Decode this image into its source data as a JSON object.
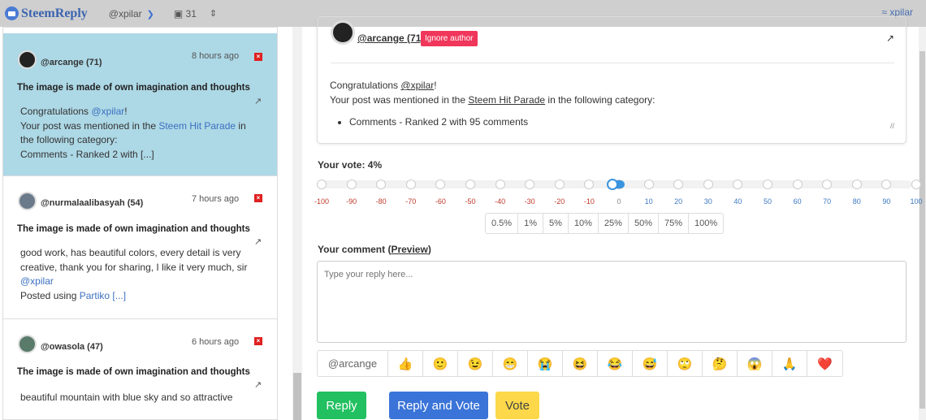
{
  "topbar": {
    "app_name": "SteemReply",
    "account": "@xpilar",
    "inbox_count": "31",
    "user": "xpilar"
  },
  "comments": [
    {
      "author": "@arcange (71)",
      "time": "8 hours ago",
      "title": "The image is made of own imagination and thoughts",
      "lines": [
        "Congratulations ",
        "@xpilar",
        "!",
        "Your post was mentioned in the ",
        "Steem Hit Parade",
        " in",
        "the following category:",
        "Comments - Ranked 2 with [...]"
      ]
    },
    {
      "author": "@nurmalaalibasyah (54)",
      "time": "7 hours ago",
      "title": "The image is made of own imagination and thoughts",
      "lines": [
        "good work, has beautiful colors, every detail is very",
        "creative, thank you for sharing, I like it very much, sir",
        "@xpilar",
        "Posted using ",
        "Partiko [...]"
      ]
    },
    {
      "author": "@owasola (47)",
      "time": "6 hours ago",
      "title": "The image is made of own imagination and thoughts",
      "lines": [
        "beautiful mountain with blue sky and so attractive"
      ]
    }
  ],
  "post": {
    "author": "@arcange (71)",
    "ignore_label": "Ignore author",
    "greeting": "Congratulations ",
    "mention": "@xpilar",
    "excl": "!",
    "line2a": "Your post was mentioned in the ",
    "line2link": "Steem Hit Parade",
    "line2b": " in the following category:",
    "bullet": "Comments - Ranked 2 with 95 comments"
  },
  "vote": {
    "label": "Your vote: 4%",
    "value": 4,
    "ticks": [
      "-100",
      "-90",
      "-80",
      "-70",
      "-60",
      "-50",
      "-40",
      "-30",
      "-20",
      "-10",
      "0",
      "10",
      "20",
      "30",
      "40",
      "50",
      "60",
      "70",
      "80",
      "90",
      "100"
    ],
    "presets": [
      "0.5%",
      "1%",
      "5%",
      "10%",
      "25%",
      "50%",
      "75%",
      "100%"
    ],
    "neg_color": "#c0392b",
    "pos_color": "#3c78c0"
  },
  "comment": {
    "label": "Your comment (",
    "preview": "Preview",
    "label_end": ")",
    "placeholder": "Type your reply here...",
    "mention": "@arcange",
    "emojis": [
      "👍",
      "🙂",
      "😉",
      "😁",
      "😭",
      "😆",
      "😂",
      "😅",
      "🙄",
      "🤔",
      "😱",
      "🙏",
      "❤️"
    ]
  },
  "actions": {
    "reply": "Reply",
    "reply_vote": "Reply and Vote",
    "vote": "Vote"
  }
}
